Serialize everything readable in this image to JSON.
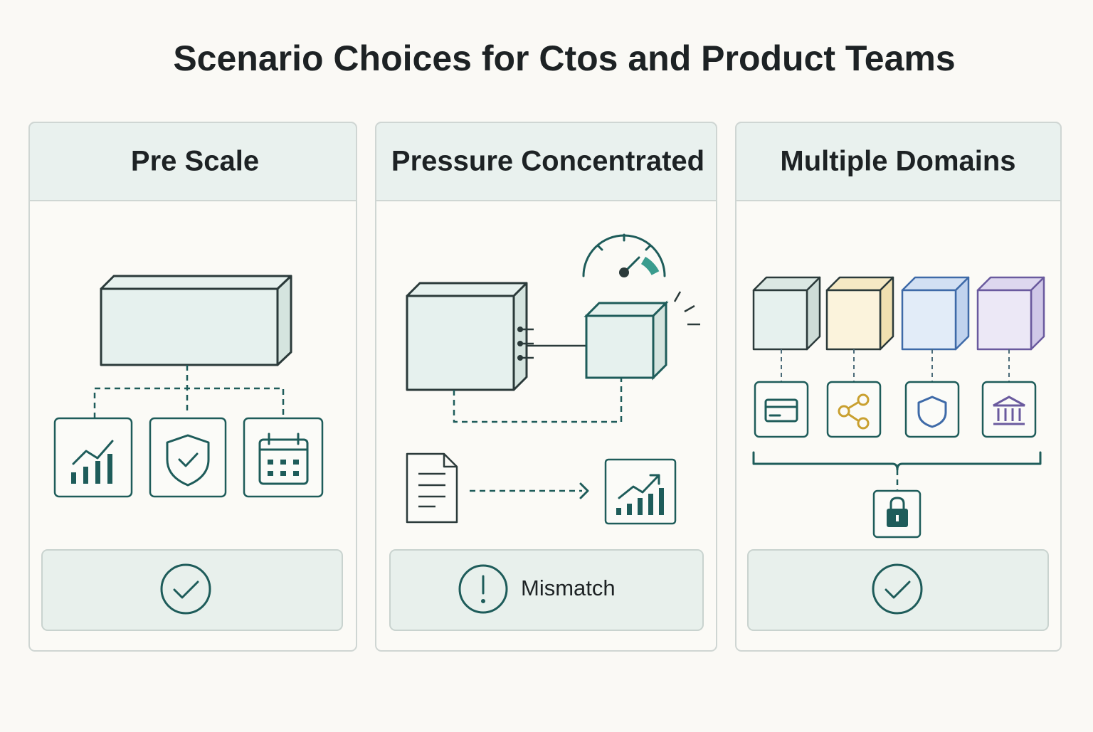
{
  "title": "Scenario Choices for Ctos and Product Teams",
  "panels": [
    {
      "title": "Pre Scale"
    },
    {
      "title": "Pressure Concentrated",
      "status": "Mismatch"
    },
    {
      "title": "Multiple Domains"
    }
  ]
}
